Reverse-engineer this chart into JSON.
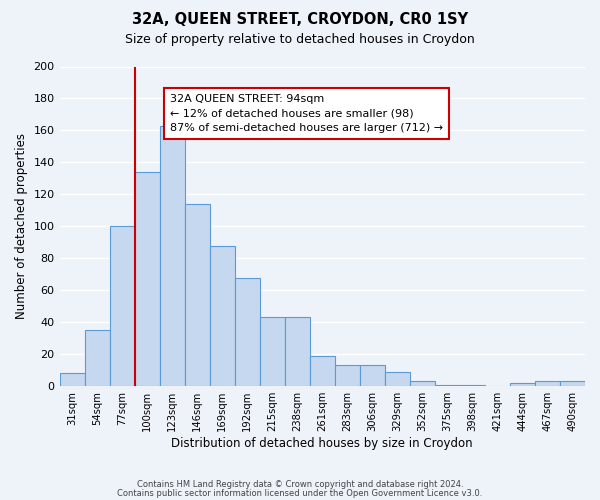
{
  "title": "32A, QUEEN STREET, CROYDON, CR0 1SY",
  "subtitle": "Size of property relative to detached houses in Croydon",
  "xlabel": "Distribution of detached houses by size in Croydon",
  "ylabel": "Number of detached properties",
  "bin_labels": [
    "31sqm",
    "54sqm",
    "77sqm",
    "100sqm",
    "123sqm",
    "146sqm",
    "169sqm",
    "192sqm",
    "215sqm",
    "238sqm",
    "261sqm",
    "283sqm",
    "306sqm",
    "329sqm",
    "352sqm",
    "375sqm",
    "398sqm",
    "421sqm",
    "444sqm",
    "467sqm",
    "490sqm"
  ],
  "bar_values": [
    8,
    35,
    100,
    134,
    163,
    114,
    88,
    68,
    43,
    43,
    19,
    13,
    13,
    9,
    3,
    1,
    1,
    0,
    2,
    3,
    3
  ],
  "bar_color": "#c5d8f0",
  "bar_edge_color": "#5b9bd5",
  "vline_color": "#cc0000",
  "ylim": [
    0,
    200
  ],
  "yticks": [
    0,
    20,
    40,
    60,
    80,
    100,
    120,
    140,
    160,
    180,
    200
  ],
  "annotation_title": "32A QUEEN STREET: 94sqm",
  "annotation_line1": "← 12% of detached houses are smaller (98)",
  "annotation_line2": "87% of semi-detached houses are larger (712) →",
  "annotation_box_color": "#ffffff",
  "annotation_box_edge": "#cc0000",
  "footer1": "Contains HM Land Registry data © Crown copyright and database right 2024.",
  "footer2": "Contains public sector information licensed under the Open Government Licence v3.0.",
  "background_color": "#eef2f9",
  "grid_color": "#ffffff"
}
